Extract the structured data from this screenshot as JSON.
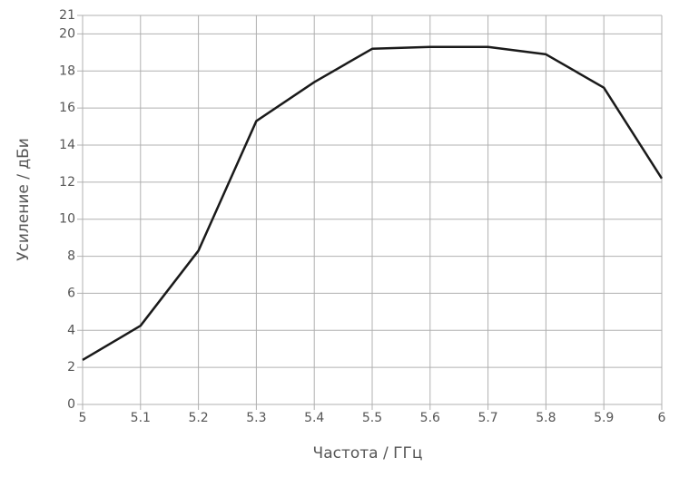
{
  "chart_data": {
    "type": "line",
    "xlabel": "Частота / ГГц",
    "ylabel": "Усиление / дБи",
    "x": [
      5,
      5.1,
      5.2,
      5.3,
      5.4,
      5.5,
      5.6,
      5.7,
      5.8,
      5.9,
      6
    ],
    "series": [
      {
        "color": "#1a1a1a",
        "values": [
          2.4,
          4.25,
          8.3,
          15.3,
          17.4,
          19.2,
          19.3,
          19.3,
          18.9,
          17.1,
          12.2
        ]
      }
    ],
    "xlim": [
      5,
      6
    ],
    "xticks": [
      5,
      5.1,
      5.2,
      5.3,
      5.4,
      5.5,
      5.6,
      5.7,
      5.8,
      5.9,
      6
    ],
    "ylim": [
      0,
      21
    ],
    "yticks": [
      0,
      2,
      4,
      6,
      8,
      10,
      12,
      14,
      16,
      18,
      20,
      21
    ],
    "grid": true
  }
}
